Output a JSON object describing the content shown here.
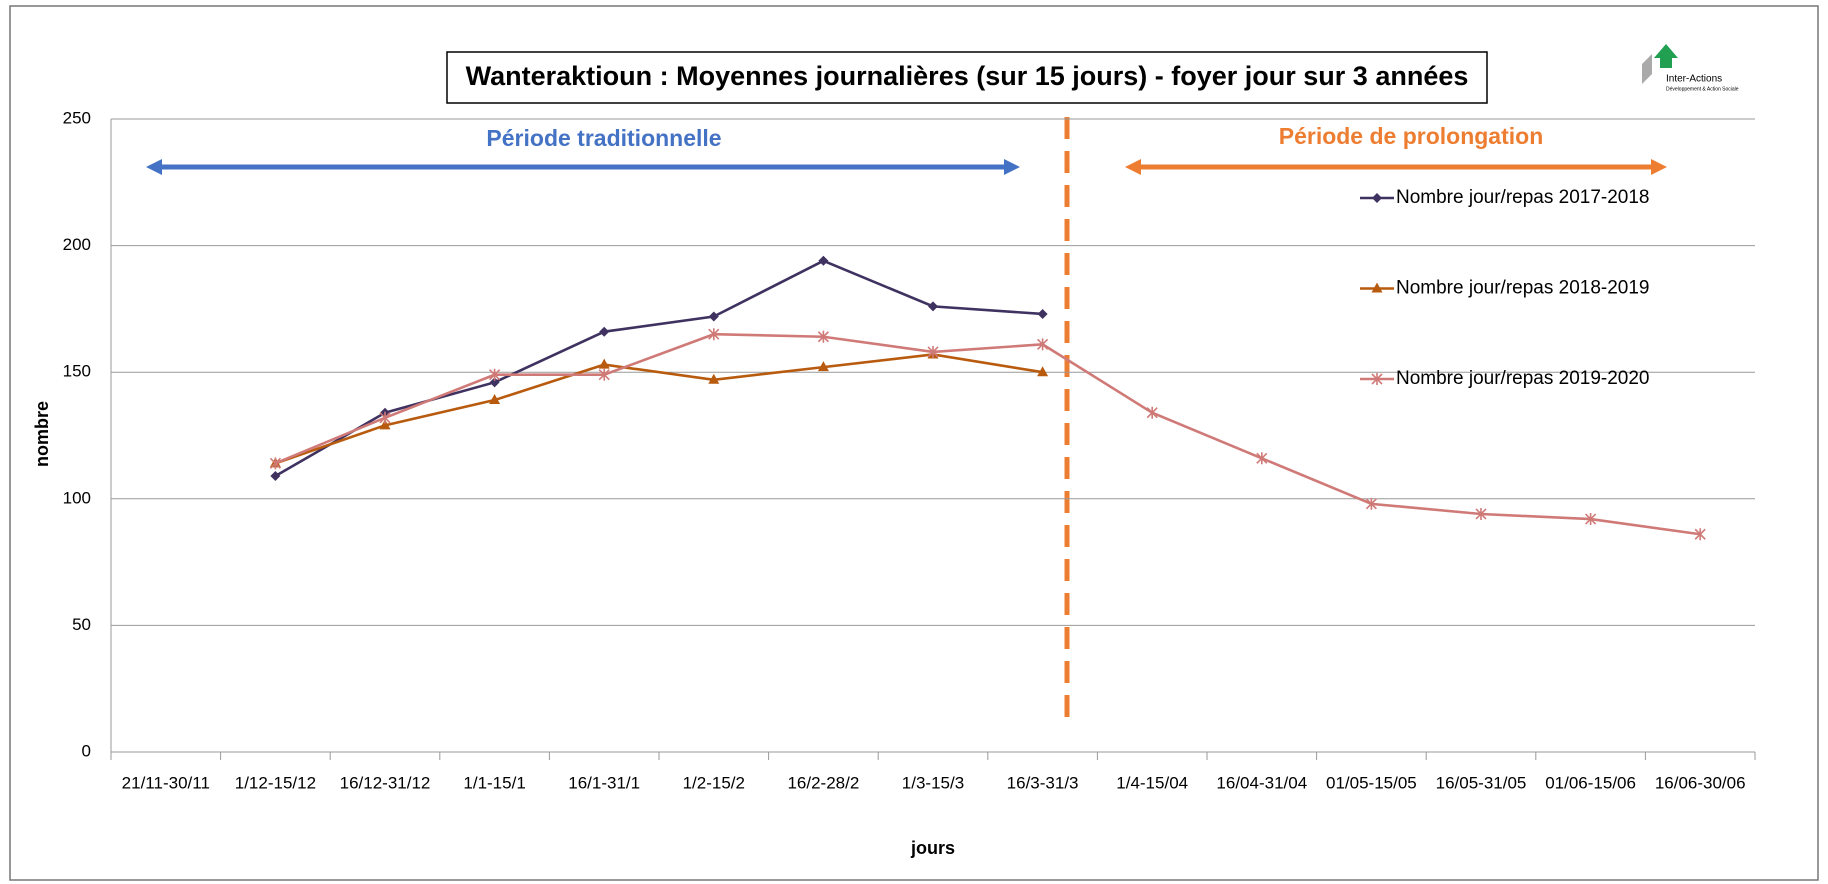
{
  "chart_data": {
    "type": "line",
    "title": "Wanteraktioun : Moyennes journalières (sur 15 jours) - foyer jour sur 3 années",
    "logo": "Inter-Actions",
    "logo_tagline": "Développement & Action Sociale",
    "x_label": "jours",
    "y_label": "nombre",
    "annotations": [
      {
        "text": "Période traditionnelle",
        "color": "#4472c4"
      },
      {
        "text": "Période de prolongation",
        "color": "#ed7d31"
      }
    ],
    "categories": [
      "21/11-30/11",
      "1/12-15/12",
      "16/12-31/12",
      "1/1-15/1",
      "16/1-31/1",
      "1/2-15/2",
      "16/2-28/2",
      "1/3-15/3",
      "16/3-31/3",
      "1/4-15/04",
      "16/04-31/04",
      "01/05-15/05",
      "16/05-31/05",
      "01/06-15/06",
      "16/06-30/06"
    ],
    "series": [
      {
        "name": "Nombre jour/repas 2017-2018",
        "color": "#3f3260",
        "marker": "diamond",
        "values": [
          null,
          109,
          134,
          146,
          166,
          172,
          194,
          176,
          173,
          null,
          null,
          null,
          null,
          null,
          null
        ]
      },
      {
        "name": "Nombre jour/repas 2018-2019",
        "color": "#b85b0f",
        "marker": "triangle",
        "values": [
          null,
          114,
          129,
          139,
          153,
          147,
          152,
          157,
          150,
          null,
          null,
          null,
          null,
          null,
          null
        ]
      },
      {
        "name": "Nombre jour/repas 2019-2020",
        "color": "#d07a78",
        "marker": "star",
        "values": [
          null,
          114,
          132,
          149,
          149,
          165,
          164,
          158,
          161,
          134,
          116,
          98,
          94,
          92,
          86
        ]
      }
    ],
    "ylim": [
      0,
      250
    ],
    "yticks": [
      0,
      50,
      100,
      150,
      200,
      250
    ],
    "grid": true
  }
}
